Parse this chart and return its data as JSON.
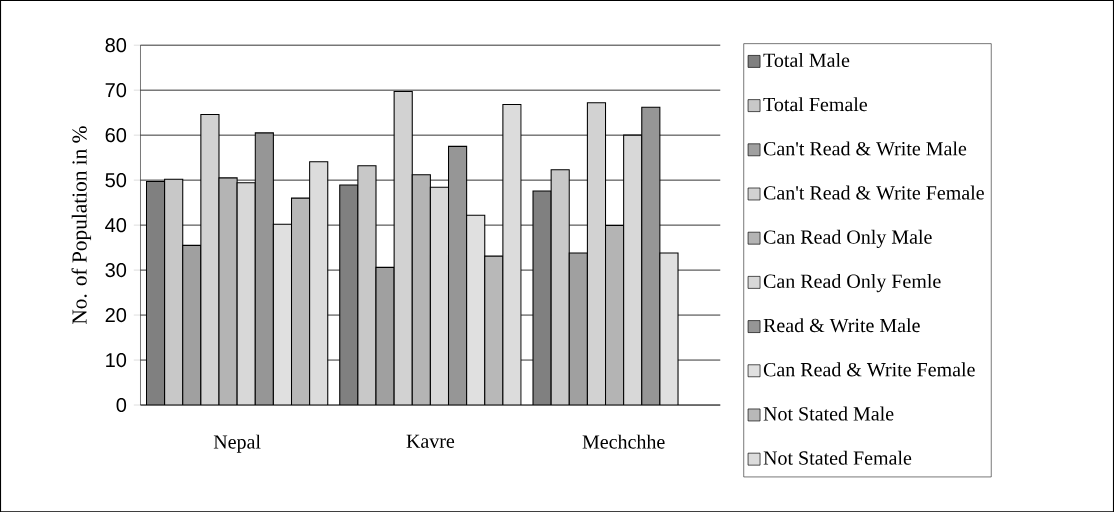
{
  "chart_data": {
    "type": "bar",
    "ylabel": "No. of Population in %",
    "categories": [
      "Nepal",
      "Kavre",
      "Mechchhe"
    ],
    "series": [
      {
        "name": "Total Male",
        "color": "#808080",
        "values": [
          49.7,
          48.9,
          47.6
        ]
      },
      {
        "name": "Total Female",
        "color": "#c8c8c8",
        "values": [
          50.2,
          53.2,
          52.3
        ]
      },
      {
        "name": "Can't Read & Write Male",
        "color": "#a0a0a0",
        "values": [
          35.5,
          30.6,
          33.8
        ]
      },
      {
        "name": "Can't Read & Write Female",
        "color": "#d2d2d2",
        "values": [
          64.6,
          69.7,
          67.2
        ]
      },
      {
        "name": "Can Read Only Male",
        "color": "#b4b4b4",
        "values": [
          50.5,
          51.2,
          39.9
        ]
      },
      {
        "name": "Can Read Only Femle",
        "color": "#d8d8d8",
        "values": [
          49.4,
          48.4,
          60.0
        ]
      },
      {
        "name": "Read & Write Male",
        "color": "#969696",
        "values": [
          60.5,
          57.5,
          66.2
        ]
      },
      {
        "name": "Can Read & Write Female",
        "color": "#e0e0e0",
        "values": [
          40.2,
          42.2,
          33.8
        ]
      },
      {
        "name": "Not Stated Male",
        "color": "#b8b8b8",
        "values": [
          46.0,
          33.1,
          null
        ]
      },
      {
        "name": "Not Stated Female",
        "color": "#dcdcdc",
        "values": [
          54.1,
          66.8,
          null
        ]
      }
    ],
    "ylim": [
      0,
      80
    ],
    "yticks": [
      0,
      10,
      20,
      30,
      40,
      50,
      60,
      70,
      80
    ],
    "grid": "y",
    "legend": "right"
  }
}
